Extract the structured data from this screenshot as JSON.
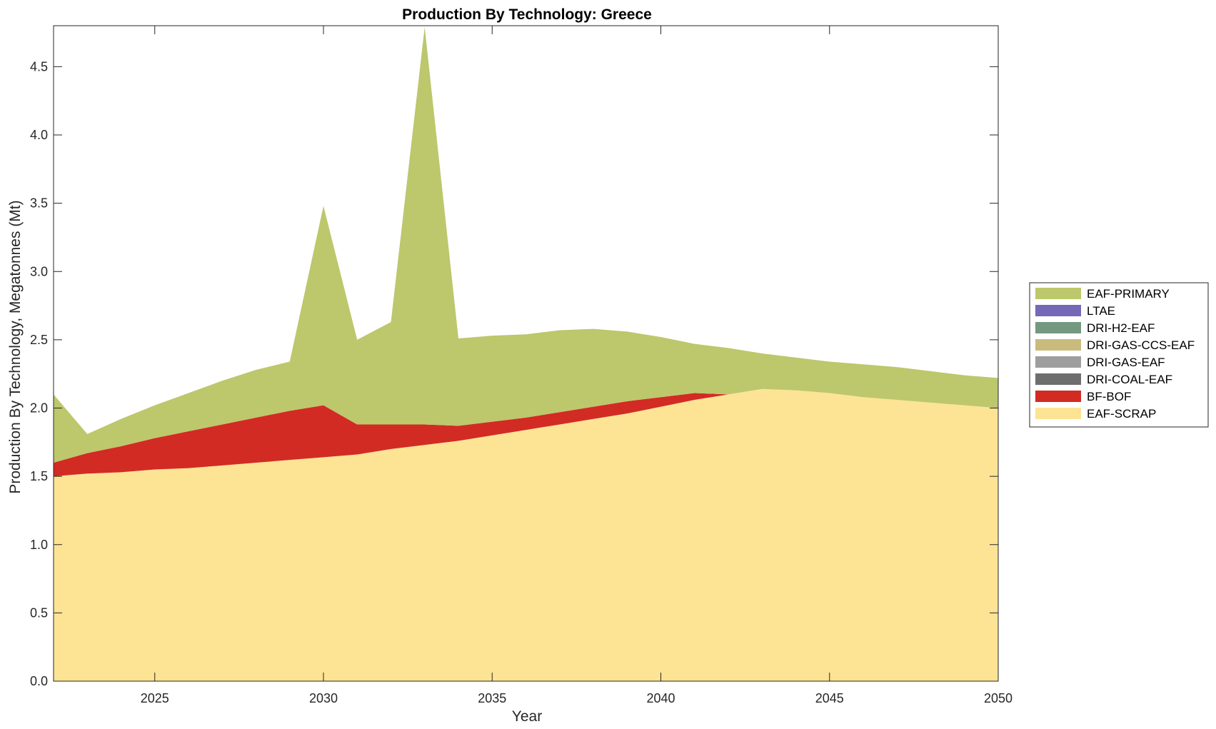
{
  "chart_data": {
    "type": "area",
    "stacked": true,
    "title": "Production By Technology: Greece",
    "xlabel": "Year",
    "ylabel": "Production By Technology, Megatonnes (Mt)",
    "xlim": [
      2022,
      2050
    ],
    "ylim": [
      0,
      4.8
    ],
    "xticks": [
      "2025",
      "2030",
      "2035",
      "2040",
      "2045",
      "2050"
    ],
    "yticks": [
      "0.0",
      "0.5",
      "1.0",
      "1.5",
      "2.0",
      "2.5",
      "3.0",
      "3.5",
      "4.0",
      "4.5"
    ],
    "legend_position": "right",
    "x": [
      2022,
      2023,
      2024,
      2025,
      2026,
      2027,
      2028,
      2029,
      2030,
      2031,
      2032,
      2033,
      2034,
      2035,
      2036,
      2037,
      2038,
      2039,
      2040,
      2041,
      2042,
      2043,
      2044,
      2045,
      2046,
      2047,
      2048,
      2049,
      2050
    ],
    "series": [
      {
        "name": "EAF-SCRAP",
        "color": "#fde394",
        "values": [
          1.5,
          1.52,
          1.53,
          1.55,
          1.56,
          1.58,
          1.6,
          1.62,
          1.64,
          1.66,
          1.7,
          1.73,
          1.76,
          1.8,
          1.84,
          1.88,
          1.92,
          1.96,
          2.01,
          2.06,
          2.1,
          2.14,
          2.13,
          2.11,
          2.08,
          2.06,
          2.04,
          2.02,
          2.0
        ]
      },
      {
        "name": "BF-BOF",
        "color": "#d22b24",
        "values": [
          0.1,
          0.15,
          0.19,
          0.23,
          0.27,
          0.3,
          0.33,
          0.36,
          0.38,
          0.22,
          0.18,
          0.15,
          0.11,
          0.1,
          0.09,
          0.09,
          0.09,
          0.09,
          0.07,
          0.05,
          0.0,
          0.0,
          0.0,
          0.0,
          0.0,
          0.0,
          0.0,
          0.0,
          0.0
        ]
      },
      {
        "name": "DRI-COAL-EAF",
        "color": "#6e6e6e",
        "values": [
          0,
          0,
          0,
          0,
          0,
          0,
          0,
          0,
          0,
          0,
          0,
          0,
          0,
          0,
          0,
          0,
          0,
          0,
          0,
          0,
          0,
          0,
          0,
          0,
          0,
          0,
          0,
          0,
          0
        ]
      },
      {
        "name": "DRI-GAS-EAF",
        "color": "#9e9e9e",
        "values": [
          0,
          0,
          0,
          0,
          0,
          0,
          0,
          0,
          0,
          0,
          0,
          0,
          0,
          0,
          0,
          0,
          0,
          0,
          0,
          0,
          0,
          0,
          0,
          0,
          0,
          0,
          0,
          0,
          0
        ]
      },
      {
        "name": "DRI-GAS-CCS-EAF",
        "color": "#c9bb7e",
        "values": [
          0,
          0,
          0,
          0,
          0,
          0,
          0,
          0,
          0,
          0,
          0,
          0,
          0,
          0,
          0,
          0,
          0,
          0,
          0,
          0,
          0,
          0,
          0,
          0,
          0,
          0,
          0,
          0,
          0
        ]
      },
      {
        "name": "DRI-H2-EAF",
        "color": "#749980",
        "values": [
          0,
          0,
          0,
          0,
          0,
          0,
          0,
          0,
          0,
          0,
          0,
          0,
          0,
          0,
          0,
          0,
          0,
          0,
          0,
          0,
          0,
          0,
          0,
          0,
          0,
          0,
          0,
          0,
          0
        ]
      },
      {
        "name": "LTAE",
        "color": "#7568b8",
        "values": [
          0,
          0,
          0,
          0,
          0,
          0,
          0,
          0,
          0,
          0,
          0,
          0,
          0,
          0,
          0,
          0,
          0,
          0,
          0,
          0,
          0,
          0,
          0,
          0,
          0,
          0,
          0,
          0,
          0
        ]
      },
      {
        "name": "EAF-PRIMARY",
        "color": "#bdc76c",
        "values": [
          0.5,
          0.14,
          0.2,
          0.24,
          0.28,
          0.32,
          0.35,
          0.36,
          1.46,
          0.62,
          0.75,
          2.91,
          0.64,
          0.63,
          0.61,
          0.6,
          0.57,
          0.51,
          0.44,
          0.36,
          0.34,
          0.26,
          0.24,
          0.23,
          0.24,
          0.24,
          0.23,
          0.22,
          0.22
        ]
      }
    ]
  }
}
